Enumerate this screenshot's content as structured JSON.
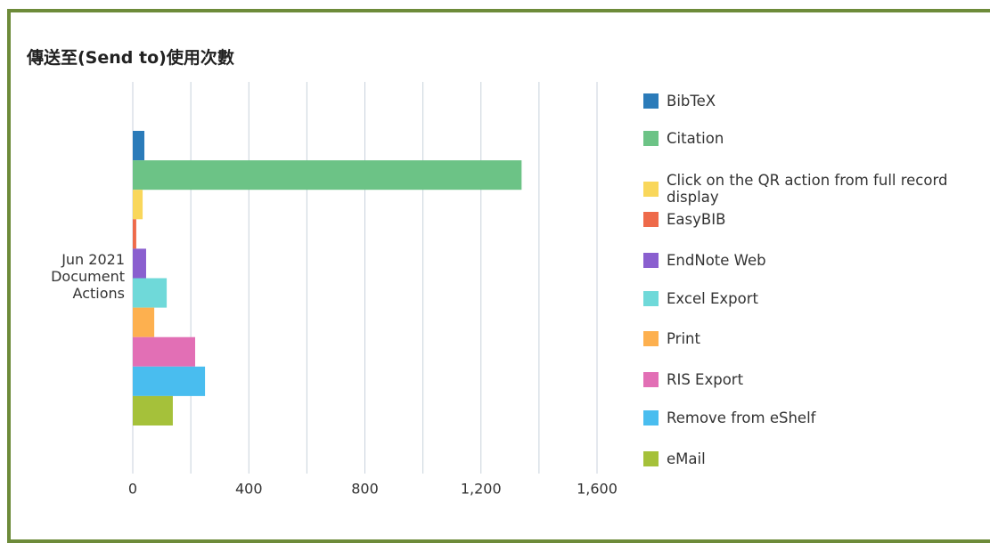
{
  "chart_data": {
    "type": "hbar",
    "title": "傳送至(Send to)使用次數",
    "categories": [
      "Jun 2021 Document Actions"
    ],
    "series": [
      {
        "name": "BibTeX",
        "color": "#2b7bb9",
        "values": [
          40
        ]
      },
      {
        "name": "Citation",
        "color": "#6cc386",
        "values": [
          1340
        ]
      },
      {
        "name": "Click on the QR action from full record display",
        "color": "#f9d75b",
        "values": [
          34
        ]
      },
      {
        "name": "EasyBIB",
        "color": "#ee6a4a",
        "values": [
          12
        ]
      },
      {
        "name": "EndNote Web",
        "color": "#8a5fcf",
        "values": [
          46
        ]
      },
      {
        "name": "Excel Export",
        "color": "#6fd9d9",
        "values": [
          117
        ]
      },
      {
        "name": "Print",
        "color": "#fdb04f",
        "values": [
          74
        ]
      },
      {
        "name": "RIS Export",
        "color": "#e26fb5",
        "values": [
          215
        ]
      },
      {
        "name": "Remove from eShelf",
        "color": "#49bdef",
        "values": [
          249
        ]
      },
      {
        "name": "eMail",
        "color": "#a5c13a",
        "values": [
          138
        ]
      }
    ],
    "xlim": [
      0,
      1600
    ],
    "xticks": [
      0,
      400,
      800,
      {
        "value": 1200,
        "label": "1,200"
      },
      {
        "value": 1600,
        "label": "1,600"
      }
    ],
    "grid": true,
    "minor_grid": true,
    "legend": "right"
  }
}
